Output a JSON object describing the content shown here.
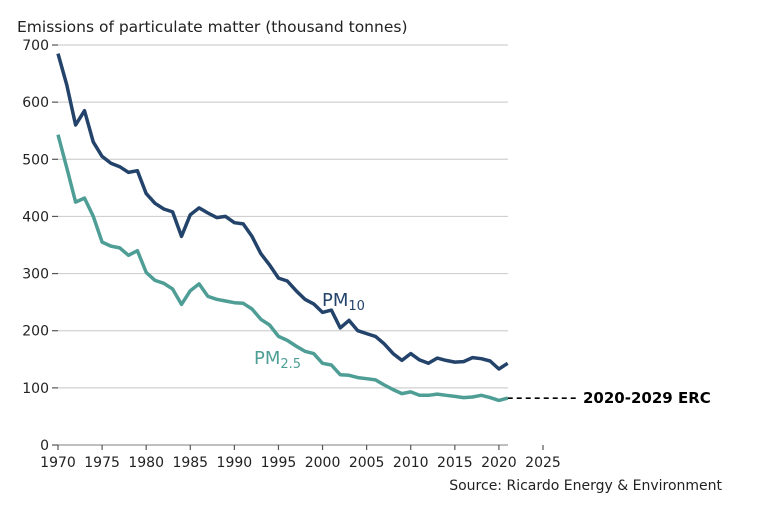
{
  "chart_data": {
    "type": "line",
    "title": "Emissions of particulate matter (thousand tonnes)",
    "source": "Source: Ricardo Energy & Environment",
    "xlim": [
      1970,
      2025
    ],
    "ylim": [
      0,
      700
    ],
    "xticks": [
      1970,
      1975,
      1980,
      1985,
      1990,
      1995,
      2000,
      2005,
      2010,
      2015,
      2020,
      2025
    ],
    "yticks": [
      0,
      100,
      200,
      300,
      400,
      500,
      600,
      700
    ],
    "grid": "horizontal",
    "x": [
      1970,
      1971,
      1972,
      1973,
      1974,
      1975,
      1976,
      1977,
      1978,
      1979,
      1980,
      1981,
      1982,
      1983,
      1984,
      1985,
      1986,
      1987,
      1988,
      1989,
      1990,
      1991,
      1992,
      1993,
      1994,
      1995,
      1996,
      1997,
      1998,
      1999,
      2000,
      2001,
      2002,
      2003,
      2004,
      2005,
      2006,
      2007,
      2008,
      2009,
      2010,
      2011,
      2012,
      2013,
      2014,
      2015,
      2016,
      2017,
      2018,
      2019,
      2020,
      2021
    ],
    "series": [
      {
        "name": "PM10",
        "label_main": "PM",
        "label_sub": "10",
        "color": "#23436b",
        "values": [
          685,
          630,
          560,
          585,
          530,
          505,
          493,
          487,
          477,
          480,
          440,
          423,
          413,
          408,
          365,
          403,
          415,
          406,
          398,
          400,
          389,
          387,
          365,
          335,
          315,
          292,
          287,
          270,
          255,
          247,
          232,
          236,
          205,
          218,
          200,
          195,
          190,
          177,
          160,
          148,
          160,
          149,
          143,
          152,
          148,
          145,
          146,
          153,
          151,
          147,
          133,
          143
        ]
      },
      {
        "name": "PM2.5",
        "label_main": "PM",
        "label_sub": "2.5",
        "color": "#4e9e96",
        "values": [
          543,
          485,
          425,
          432,
          400,
          355,
          348,
          345,
          332,
          340,
          302,
          288,
          283,
          273,
          246,
          270,
          282,
          260,
          255,
          252,
          249,
          248,
          238,
          220,
          210,
          190,
          183,
          173,
          164,
          160,
          143,
          140,
          123,
          122,
          118,
          116,
          114,
          105,
          97,
          90,
          93,
          87,
          87,
          89,
          87,
          85,
          83,
          84,
          87,
          83,
          78,
          82
        ]
      }
    ],
    "annotation": {
      "text": "2020-2029 ERC",
      "value": 82,
      "color": "#000000"
    }
  }
}
